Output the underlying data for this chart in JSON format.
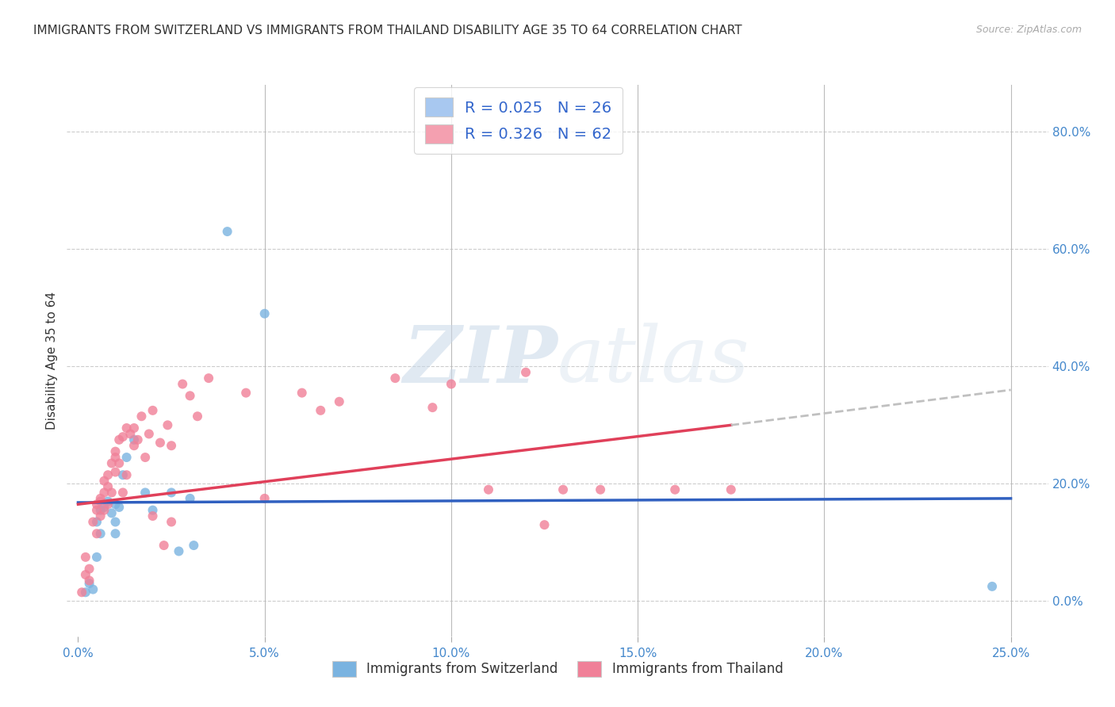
{
  "title": "IMMIGRANTS FROM SWITZERLAND VS IMMIGRANTS FROM THAILAND DISABILITY AGE 35 TO 64 CORRELATION CHART",
  "source": "Source: ZipAtlas.com",
  "xlabel_ticks": [
    0.0,
    5.0,
    10.0,
    15.0,
    20.0,
    25.0
  ],
  "ylabel_ticks": [
    0.0,
    20.0,
    40.0,
    60.0,
    80.0
  ],
  "xlim": [
    -0.3,
    26.0
  ],
  "ylim": [
    -6,
    88
  ],
  "ylabel": "Disability Age 35 to 64",
  "legend_entries": [
    {
      "label": "R = 0.025   N = 26",
      "color": "#a8c8f0"
    },
    {
      "label": "R = 0.326   N = 62",
      "color": "#f4a0b0"
    }
  ],
  "legend_bottom": [
    "Immigrants from Switzerland",
    "Immigrants from Thailand"
  ],
  "switzerland_dots": [
    [
      0.2,
      1.5
    ],
    [
      0.3,
      3.0
    ],
    [
      0.4,
      2.0
    ],
    [
      0.5,
      13.5
    ],
    [
      0.5,
      7.5
    ],
    [
      0.6,
      15.5
    ],
    [
      0.6,
      11.5
    ],
    [
      0.7,
      16.0
    ],
    [
      0.8,
      17.0
    ],
    [
      0.9,
      15.0
    ],
    [
      1.0,
      16.5
    ],
    [
      1.0,
      13.5
    ],
    [
      1.0,
      11.5
    ],
    [
      1.1,
      16.0
    ],
    [
      1.2,
      21.5
    ],
    [
      1.3,
      24.5
    ],
    [
      1.5,
      27.5
    ],
    [
      1.8,
      18.5
    ],
    [
      2.0,
      15.5
    ],
    [
      2.5,
      18.5
    ],
    [
      2.7,
      8.5
    ],
    [
      3.0,
      17.5
    ],
    [
      3.1,
      9.5
    ],
    [
      4.0,
      63.0
    ],
    [
      5.0,
      49.0
    ],
    [
      24.5,
      2.5
    ]
  ],
  "thailand_dots": [
    [
      0.1,
      1.5
    ],
    [
      0.2,
      4.5
    ],
    [
      0.2,
      7.5
    ],
    [
      0.3,
      3.5
    ],
    [
      0.3,
      5.5
    ],
    [
      0.4,
      13.5
    ],
    [
      0.5,
      11.5
    ],
    [
      0.5,
      15.5
    ],
    [
      0.5,
      16.5
    ],
    [
      0.6,
      17.5
    ],
    [
      0.6,
      14.5
    ],
    [
      0.6,
      17.0
    ],
    [
      0.7,
      15.5
    ],
    [
      0.7,
      18.5
    ],
    [
      0.7,
      20.5
    ],
    [
      0.8,
      16.5
    ],
    [
      0.8,
      19.5
    ],
    [
      0.8,
      21.5
    ],
    [
      0.9,
      18.5
    ],
    [
      0.9,
      23.5
    ],
    [
      1.0,
      22.0
    ],
    [
      1.0,
      24.5
    ],
    [
      1.0,
      25.5
    ],
    [
      1.1,
      23.5
    ],
    [
      1.1,
      27.5
    ],
    [
      1.2,
      18.5
    ],
    [
      1.2,
      28.0
    ],
    [
      1.3,
      21.5
    ],
    [
      1.3,
      29.5
    ],
    [
      1.4,
      28.5
    ],
    [
      1.5,
      26.5
    ],
    [
      1.5,
      29.5
    ],
    [
      1.6,
      27.5
    ],
    [
      1.7,
      31.5
    ],
    [
      1.8,
      24.5
    ],
    [
      1.9,
      28.5
    ],
    [
      2.0,
      14.5
    ],
    [
      2.0,
      32.5
    ],
    [
      2.2,
      27.0
    ],
    [
      2.3,
      9.5
    ],
    [
      2.4,
      30.0
    ],
    [
      2.5,
      13.5
    ],
    [
      2.5,
      26.5
    ],
    [
      2.8,
      37.0
    ],
    [
      3.0,
      35.0
    ],
    [
      3.2,
      31.5
    ],
    [
      3.5,
      38.0
    ],
    [
      4.5,
      35.5
    ],
    [
      5.0,
      17.5
    ],
    [
      6.0,
      35.5
    ],
    [
      6.5,
      32.5
    ],
    [
      7.0,
      34.0
    ],
    [
      8.5,
      38.0
    ],
    [
      9.5,
      33.0
    ],
    [
      10.0,
      37.0
    ],
    [
      11.0,
      19.0
    ],
    [
      12.0,
      39.0
    ],
    [
      12.5,
      13.0
    ],
    [
      13.0,
      19.0
    ],
    [
      14.0,
      19.0
    ],
    [
      16.0,
      19.0
    ],
    [
      17.5,
      19.0
    ]
  ],
  "switzerland_line": {
    "x0": 0.0,
    "y0": 16.8,
    "x1": 25.0,
    "y1": 17.5
  },
  "thailand_line_solid": {
    "x0": 0.0,
    "y0": 16.5,
    "x1": 17.5,
    "y1": 30.0
  },
  "thailand_line_dashed": {
    "x0": 17.5,
    "y0": 30.0,
    "x1": 25.0,
    "y1": 36.0
  },
  "dot_size": 75,
  "switzerland_color": "#7ab3e0",
  "thailand_color": "#f08098",
  "switzerland_line_color": "#3060c0",
  "thailand_line_color": "#e0405a",
  "grid_color": "#cccccc",
  "watermark_zip": "ZIP",
  "watermark_atlas": "atlas",
  "background_color": "#ffffff",
  "title_fontsize": 11,
  "axis_label_fontsize": 11,
  "tick_fontsize": 11,
  "tick_color": "#4488cc"
}
